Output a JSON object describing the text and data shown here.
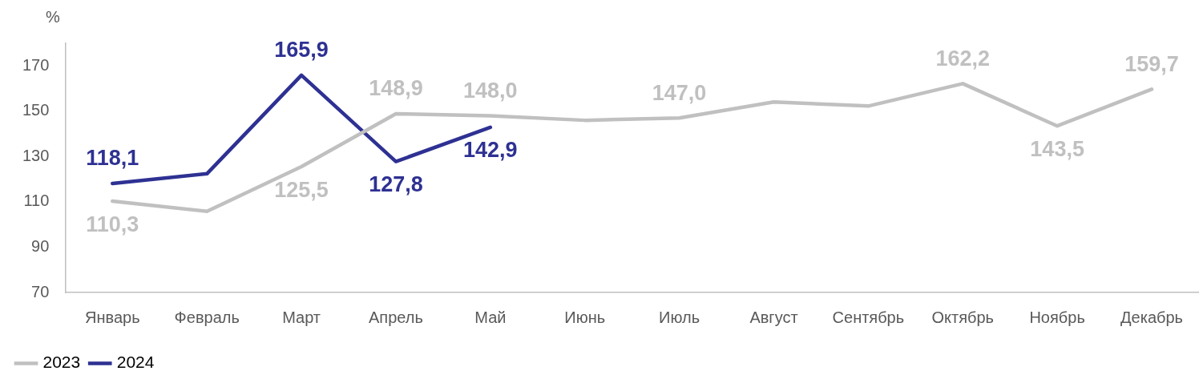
{
  "chart_data": {
    "type": "line",
    "ylabel": "%",
    "categories": [
      "Январь",
      "Февраль",
      "Март",
      "Апрель",
      "Май",
      "Июнь",
      "Июль",
      "Август",
      "Сентябрь",
      "Октябрь",
      "Ноябрь",
      "Декабрь"
    ],
    "series": [
      {
        "name": "2023",
        "color": "#c0c0c0",
        "values": [
          110.3,
          105.8,
          125.5,
          148.9,
          148.0,
          146.0,
          147.0,
          154.1,
          152.3,
          162.2,
          143.5,
          159.7
        ],
        "value_labels": [
          "110,3",
          null,
          "125,5",
          "148,9",
          "148,0",
          null,
          "147,0",
          null,
          null,
          "162,2",
          "143,5",
          "159,7"
        ]
      },
      {
        "name": "2024",
        "color": "#2e3192",
        "values": [
          118.1,
          122.4,
          165.9,
          127.8,
          142.9,
          null,
          null,
          null,
          null,
          null,
          null,
          null
        ],
        "value_labels": [
          "118,1",
          null,
          "165,9",
          "127,8",
          "142,9",
          null,
          null,
          null,
          null,
          null,
          null,
          null
        ]
      }
    ],
    "ylim": [
      70,
      180
    ],
    "yticks": [
      70,
      90,
      110,
      130,
      150,
      170
    ],
    "grid": false,
    "legend": "bottom left",
    "marker": "none",
    "line_style": "solid"
  }
}
